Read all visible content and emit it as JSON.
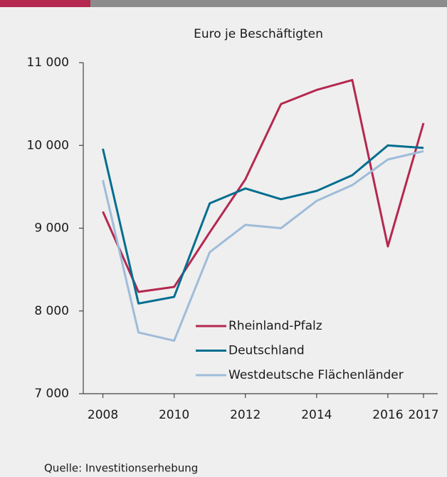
{
  "chart_data": {
    "type": "line",
    "subtitle": "Euro je Beschäftigten",
    "source": "Quelle: Investitionserhebung",
    "x": [
      2008,
      2009,
      2010,
      2011,
      2012,
      2013,
      2014,
      2015,
      2016,
      2017
    ],
    "series": [
      {
        "name": "Rheinland-Pfalz",
        "color": "#b5284f",
        "values": [
          9200,
          8230,
          8290,
          8950,
          9590,
          10500,
          10670,
          10790,
          8780,
          10270
        ]
      },
      {
        "name": "Deutschland",
        "color": "#006e8f",
        "values": [
          9960,
          8090,
          8170,
          9300,
          9480,
          9350,
          9450,
          9640,
          10000,
          9970
        ]
      },
      {
        "name": "Westdeutsche Flächenländer",
        "color": "#9fbcd9",
        "values": [
          9580,
          7740,
          7640,
          8710,
          9040,
          9000,
          9330,
          9520,
          9830,
          9930
        ]
      }
    ],
    "xlim": [
      2007.45,
      2017.4
    ],
    "xticks": [
      2008,
      2010,
      2012,
      2014,
      2016,
      2017
    ],
    "ylim": [
      7000,
      11000
    ],
    "yticks": [
      {
        "value": 7000,
        "label": "7 000"
      },
      {
        "value": 8000,
        "label": "8 000"
      },
      {
        "value": 9000,
        "label": "9 000"
      },
      {
        "value": 10000,
        "label": "10 000"
      },
      {
        "value": 11000,
        "label": "11 000"
      }
    ],
    "grid": false
  }
}
